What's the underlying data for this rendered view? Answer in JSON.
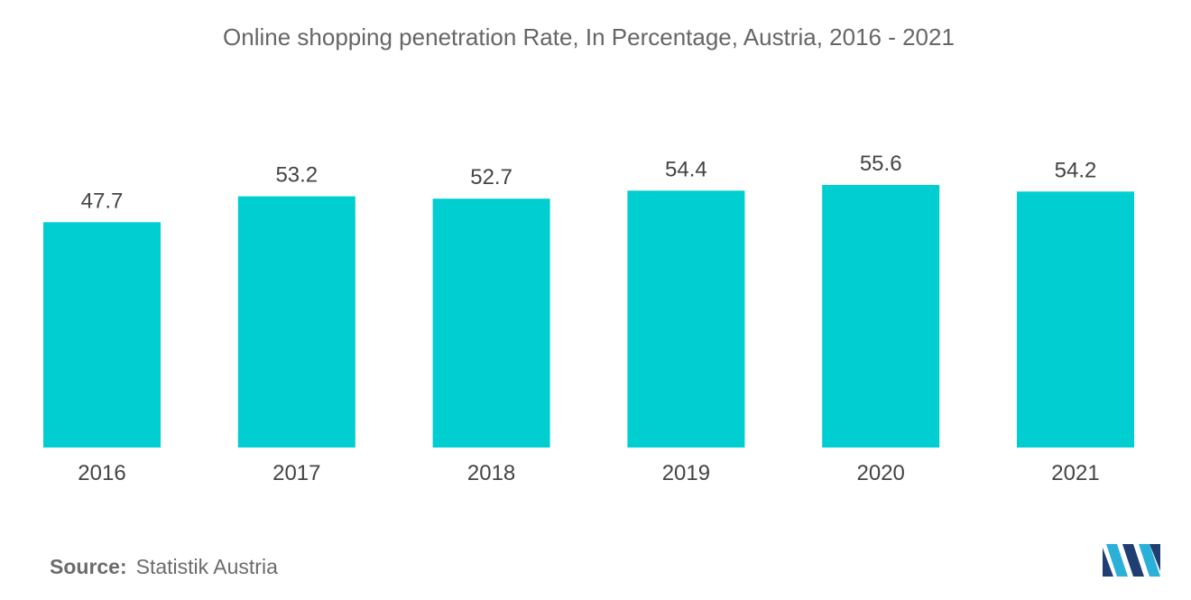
{
  "chart_data": {
    "type": "bar",
    "title": "Online shopping penetration Rate, In Percentage, Austria, 2016 - 2021",
    "categories": [
      "2016",
      "2017",
      "2018",
      "2019",
      "2020",
      "2021"
    ],
    "values": [
      47.7,
      53.2,
      52.7,
      54.4,
      55.6,
      54.2
    ],
    "value_labels": [
      "47.7",
      "53.2",
      "52.7",
      "54.4",
      "55.6",
      "54.2"
    ],
    "xlabel": "",
    "ylabel": "",
    "ylim": [
      0,
      55.6
    ],
    "grid": false,
    "legend": "none",
    "bar_color": "#00CED1"
  },
  "source": {
    "label": "Source:",
    "text": "Statistik Austria"
  },
  "logo": {
    "icon": "mordor-intelligence-logo-icon",
    "colors": [
      "#1f3f73",
      "#2bb0d9"
    ]
  }
}
